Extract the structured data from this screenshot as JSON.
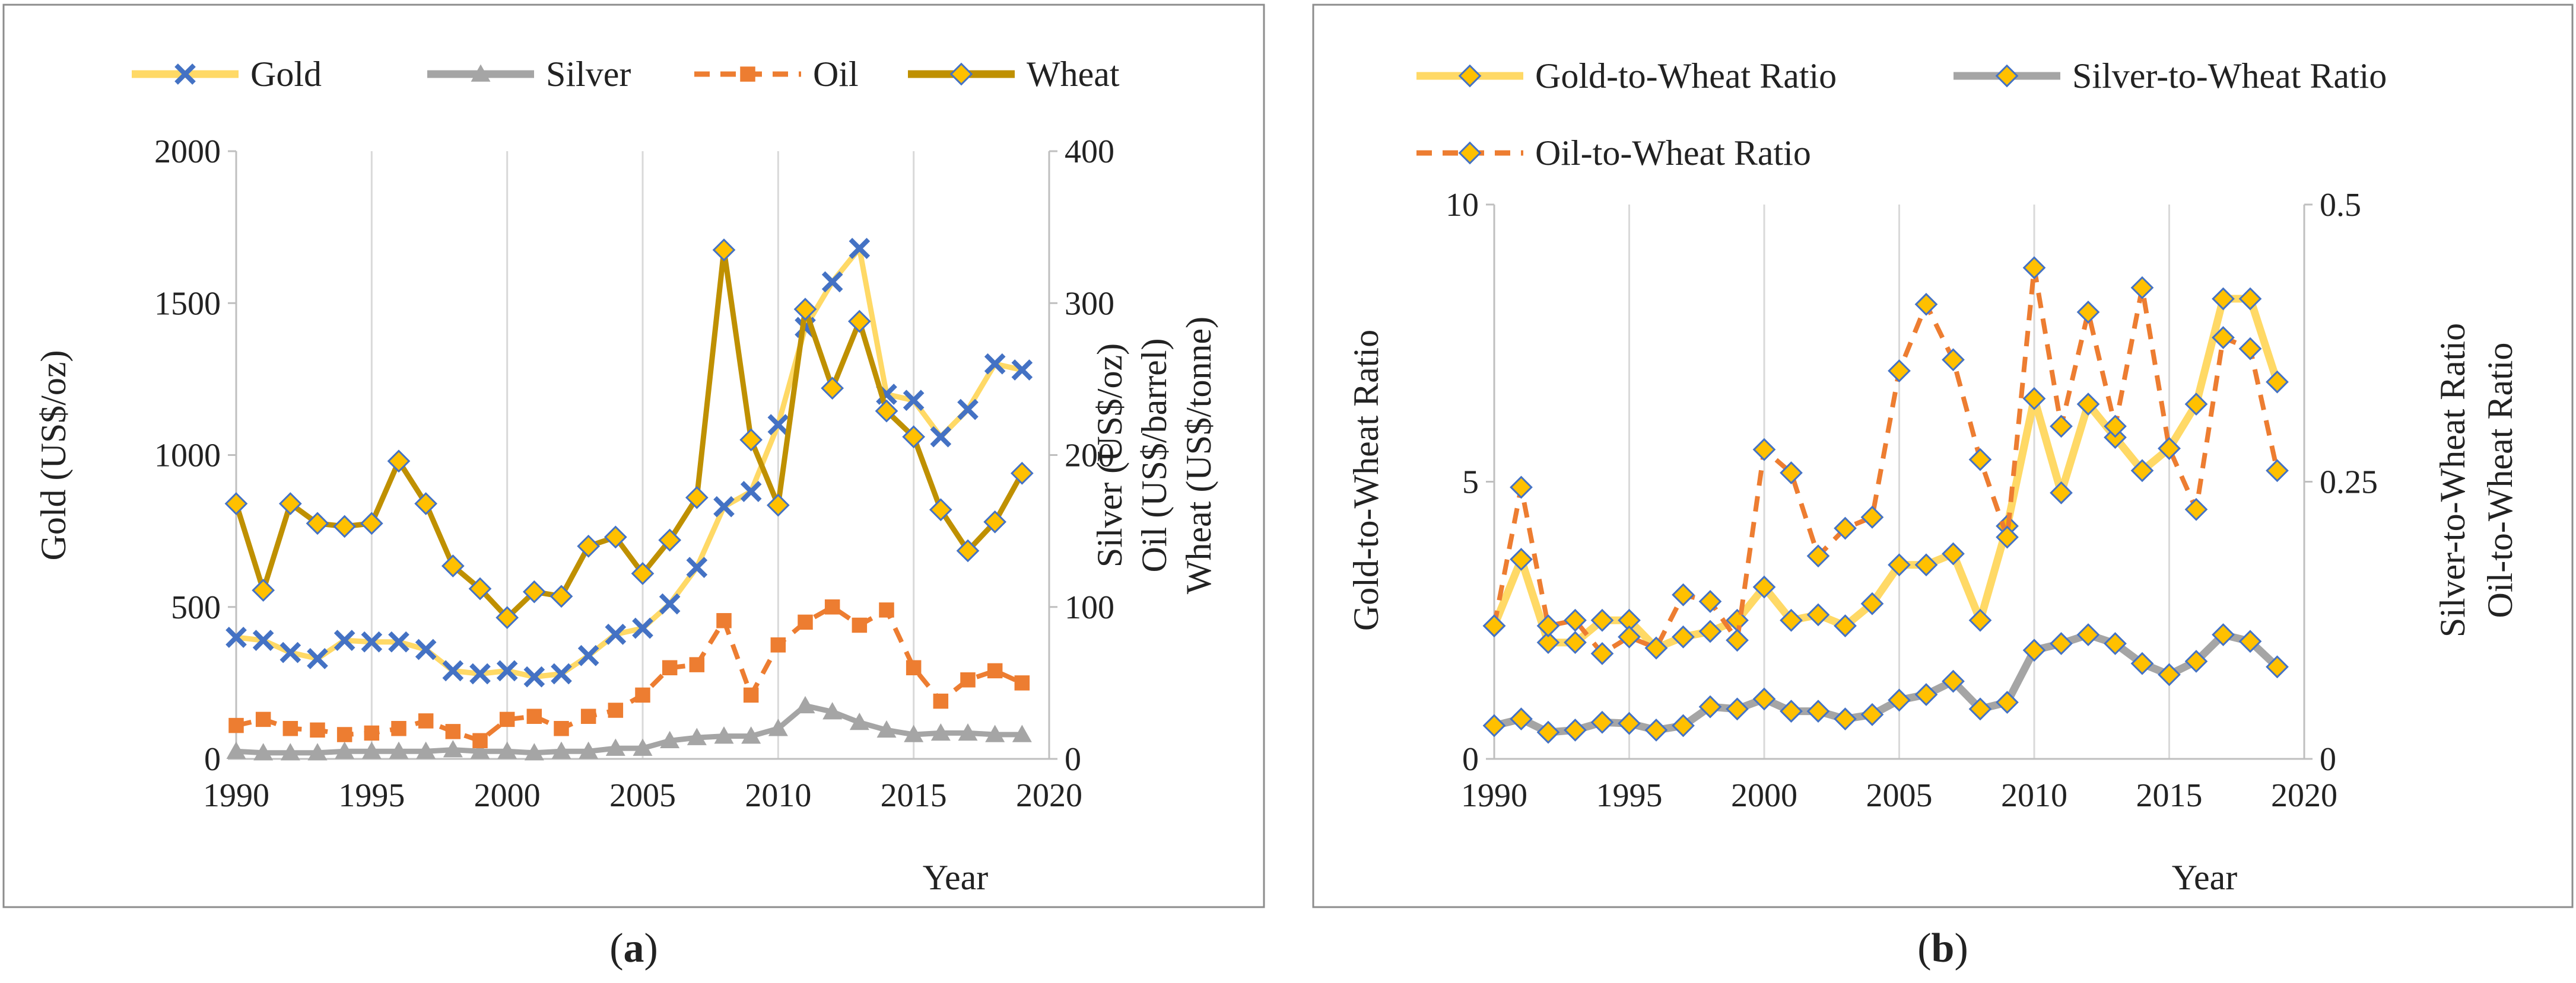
{
  "panels": [
    {
      "id": "a",
      "caption_open": "(",
      "caption_letter": "a",
      "caption_close": ")",
      "chart_data": {
        "type": "line",
        "title": "",
        "legend_position": "top",
        "x": [
          1990,
          1991,
          1992,
          1993,
          1994,
          1995,
          1996,
          1997,
          1998,
          1999,
          2000,
          2001,
          2002,
          2003,
          2004,
          2005,
          2006,
          2007,
          2008,
          2009,
          2010,
          2011,
          2012,
          2013,
          2014,
          2015,
          2016,
          2017,
          2018,
          2019
        ],
        "xlabel": "Year",
        "xlim": [
          1990,
          2020
        ],
        "xticks": [
          1990,
          1995,
          2000,
          2005,
          2010,
          2015,
          2020
        ],
        "ylabel_left": [
          "Gold (US$/oz)"
        ],
        "ylim_left": [
          0,
          2000
        ],
        "yticks_left": [
          0,
          500,
          1000,
          1500,
          2000
        ],
        "ylabel_right": [
          "Silver (US$/oz)",
          "Oil (US$/barrel)",
          "Wheat (US$/tonne)"
        ],
        "ylim_right": [
          0,
          400
        ],
        "yticks_right": [
          0,
          100,
          200,
          300,
          400
        ],
        "grid": "vertical",
        "series": [
          {
            "name": "Gold",
            "axis": "left",
            "color": "#FFD966",
            "marker": "x",
            "marker_color": "#4472C4",
            "dashed": false,
            "values": [
              400,
              390,
              350,
              330,
              390,
              385,
              385,
              360,
              290,
              280,
              290,
              270,
              280,
              340,
              410,
              430,
              510,
              630,
              830,
              880,
              1100,
              1420,
              1570,
              1680,
              1200,
              1180,
              1060,
              1150,
              1300,
              1280
            ]
          },
          {
            "name": "Silver",
            "axis": "right",
            "color": "#A5A5A5",
            "marker": "triangle",
            "marker_color": "#A5A5A5",
            "dashed": false,
            "values": [
              5,
              4,
              4,
              4,
              5,
              5,
              5,
              5,
              6,
              5,
              5,
              4,
              5,
              5,
              7,
              7,
              12,
              14,
              15,
              15,
              20,
              35,
              31,
              24,
              19,
              16,
              17,
              17,
              16,
              16
            ]
          },
          {
            "name": "Oil",
            "axis": "right",
            "color": "#ED7D31",
            "marker": "square",
            "marker_color": "#ED7D31",
            "dashed": true,
            "values": [
              22,
              26,
              20,
              19,
              16,
              17,
              20,
              25,
              18,
              12,
              26,
              28,
              20,
              28,
              32,
              42,
              60,
              62,
              91,
              42,
              75,
              90,
              100,
              88,
              98,
              60,
              38,
              52,
              58,
              50
            ]
          },
          {
            "name": "Wheat",
            "axis": "right",
            "color": "#BF9000",
            "marker": "diamond",
            "marker_color": "#FFC000",
            "dashed": false,
            "values": [
              168,
              111,
              168,
              155,
              153,
              155,
              196,
              168,
              127,
              112,
              93,
              110,
              107,
              140,
              146,
              122,
              144,
              172,
              335,
              210,
              167,
              296,
              244,
              288,
              229,
              212,
              164,
              137,
              156,
              188
            ]
          }
        ]
      }
    },
    {
      "id": "b",
      "caption_open": "(",
      "caption_letter": "b",
      "caption_close": ")",
      "chart_data": {
        "type": "line",
        "title": "",
        "legend_position": "top",
        "x": [
          1990,
          1991,
          1992,
          1993,
          1994,
          1995,
          1996,
          1997,
          1998,
          1999,
          2000,
          2001,
          2002,
          2003,
          2004,
          2005,
          2006,
          2007,
          2008,
          2009,
          2010,
          2011,
          2012,
          2013,
          2014,
          2015,
          2016,
          2017,
          2018,
          2019
        ],
        "xlabel": "Year",
        "xlim": [
          1990,
          2020
        ],
        "xticks": [
          1990,
          1995,
          2000,
          2005,
          2010,
          2015,
          2020
        ],
        "ylabel_left": [
          "Gold-to-Wheat Ratio"
        ],
        "ylim_left": [
          0,
          10
        ],
        "yticks_left": [
          0,
          5,
          10
        ],
        "ylabel_right": [
          "Silver-to-Wheat Ratio",
          "Oil-to-Wheat Ratio"
        ],
        "ylim_right": [
          0,
          0.5
        ],
        "yticks_right": [
          0,
          0.25,
          0.5
        ],
        "grid": "vertical",
        "series": [
          {
            "name": "Gold-to-Wheat Ratio",
            "axis": "left",
            "color": "#FFD966",
            "marker": "diamond",
            "marker_color": "#FFC000",
            "dashed": false,
            "values": [
              2.4,
              3.6,
              2.1,
              2.1,
              2.5,
              2.5,
              2.0,
              2.2,
              2.3,
              2.5,
              3.1,
              2.5,
              2.6,
              2.4,
              2.8,
              3.5,
              3.5,
              3.7,
              2.5,
              4.2,
              6.5,
              4.8,
              6.4,
              5.8,
              5.2,
              5.6,
              6.4,
              8.3,
              8.3,
              6.8
            ]
          },
          {
            "name": "Silver-to-Wheat Ratio",
            "axis": "right",
            "color": "#A5A5A5",
            "marker": "diamond",
            "marker_color": "#FFC000",
            "dashed": false,
            "values": [
              0.03,
              0.036,
              0.024,
              0.026,
              0.033,
              0.032,
              0.026,
              0.03,
              0.047,
              0.045,
              0.054,
              0.043,
              0.043,
              0.036,
              0.04,
              0.053,
              0.058,
              0.07,
              0.045,
              0.051,
              0.098,
              0.104,
              0.112,
              0.104,
              0.086,
              0.076,
              0.088,
              0.112,
              0.106,
              0.083
            ]
          },
          {
            "name": "Oil-to-Wheat Ratio",
            "axis": "right",
            "color": "#ED7D31",
            "marker": "diamond",
            "marker_color": "#FFC000",
            "dashed": true,
            "values": [
              0.12,
              0.245,
              0.12,
              0.125,
              0.095,
              0.11,
              0.1,
              0.148,
              0.142,
              0.107,
              0.279,
              0.258,
              0.183,
              0.208,
              0.218,
              0.35,
              0.41,
              0.36,
              0.27,
              0.2,
              0.443,
              0.3,
              0.403,
              0.3,
              0.425,
              0.28,
              0.225,
              0.38,
              0.37,
              0.26
            ]
          }
        ]
      }
    }
  ]
}
